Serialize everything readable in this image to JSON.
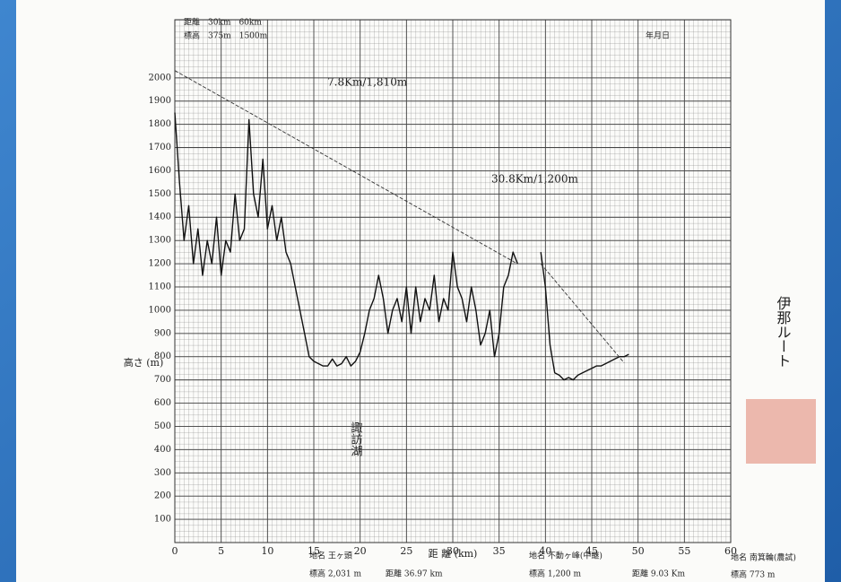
{
  "chart_data": {
    "type": "line",
    "header_left": [
      "距離　30km　60km",
      "標高　375m　1500m"
    ],
    "header_right": "年月日",
    "y_label": "高さ (m)",
    "x_label": "距 離 (km)",
    "side_label": "伊那ルート",
    "annotations": [
      "7.8Km/1,810m",
      "30.8Km/1,200m",
      "諏訪湖"
    ],
    "footer": [
      "地名 王ヶ頭",
      "標高 2,031 m",
      "距離 36.97 km",
      "地名 不動ヶ峰(中継)",
      "標高 1,200 m",
      "距離 9.03 Km",
      "地名 南箕輪(農試)",
      "標高 773 m"
    ],
    "xlim": [
      0,
      60
    ],
    "ylim": [
      0,
      2250
    ],
    "xticks": [
      0,
      5,
      10,
      15,
      20,
      25,
      30,
      35,
      40,
      45,
      50,
      55,
      60
    ],
    "yticks": [
      100,
      200,
      300,
      400,
      500,
      600,
      700,
      800,
      900,
      1000,
      1100,
      1200,
      1300,
      1400,
      1500,
      1600,
      1700,
      1800,
      1900,
      2000
    ],
    "grid": true,
    "series": [
      {
        "color": "#111111",
        "dashed": false,
        "x": [
          0,
          0.5,
          1,
          1.5,
          2,
          2.5,
          3,
          3.5,
          4,
          4.5,
          5,
          5.5,
          6,
          6.5,
          7,
          7.5,
          8,
          8.5,
          9,
          9.5,
          10,
          10.5,
          11,
          11.5,
          12,
          12.5,
          13,
          13.5,
          14,
          14.5,
          15,
          15.5,
          16,
          16.5,
          17,
          17.5,
          18,
          18.5,
          19,
          19.5,
          20,
          20.5,
          21,
          21.5,
          22,
          22.5,
          23,
          23.5,
          24,
          24.5,
          25,
          25.5,
          26,
          26.5,
          27,
          27.5,
          28,
          28.5,
          29,
          29.5,
          30,
          30.5,
          31,
          31.5,
          32,
          32.5,
          33,
          33.5,
          34,
          34.5,
          35,
          35.5,
          36,
          36.5,
          37,
          38,
          39.5,
          40,
          40.5,
          41,
          41.5,
          42,
          42.5,
          43,
          43.5,
          44,
          44.5,
          45,
          45.5,
          46,
          46.5,
          47,
          47.5,
          48,
          48.5,
          49
        ],
        "values": [
          1850,
          1550,
          1300,
          1450,
          1200,
          1350,
          1150,
          1300,
          1200,
          1400,
          1150,
          1300,
          1250,
          1500,
          1300,
          1350,
          1820,
          1500,
          1400,
          1650,
          1350,
          1450,
          1300,
          1400,
          1250,
          1200,
          1100,
          1000,
          900,
          800,
          780,
          770,
          760,
          760,
          790,
          760,
          770,
          800,
          760,
          780,
          820,
          900,
          1000,
          1050,
          1150,
          1050,
          900,
          1000,
          1050,
          950,
          1100,
          900,
          1100,
          950,
          1050,
          1000,
          1150,
          950,
          1050,
          1000,
          1250,
          1100,
          1050,
          950,
          1100,
          1000,
          850,
          900,
          1000,
          800,
          900,
          1100,
          1150,
          1250,
          1200,
          null,
          1250,
          1100,
          850,
          730,
          720,
          700,
          710,
          700,
          720,
          730,
          740,
          750,
          760,
          760,
          770,
          780,
          790,
          800,
          800,
          810
        ]
      },
      {
        "color": "#333333",
        "dashed": true,
        "x": [
          0,
          36.97
        ],
        "values": [
          2031,
          1200
        ]
      },
      {
        "color": "#333333",
        "dashed": true,
        "x": [
          39.5,
          48.5
        ],
        "values": [
          1200,
          773
        ]
      }
    ]
  }
}
